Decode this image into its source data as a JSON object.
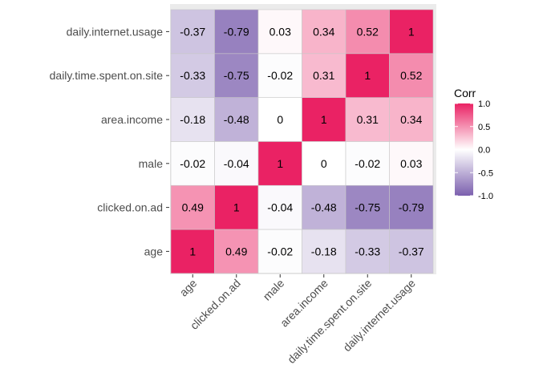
{
  "chart_data": {
    "type": "heatmap",
    "title": "",
    "xlabel": "",
    "ylabel": "",
    "variables": [
      "age",
      "clicked.on.ad",
      "male",
      "area.income",
      "daily.time.spent.on.site",
      "daily.internet.usage"
    ],
    "matrix": [
      [
        "1",
        "0.49",
        "-0.02",
        "-0.18",
        "-0.33",
        "-0.37"
      ],
      [
        "0.49",
        "1",
        "-0.04",
        "-0.48",
        "-0.75",
        "-0.79"
      ],
      [
        "-0.02",
        "-0.04",
        "1",
        "0",
        "-0.02",
        "0.03"
      ],
      [
        "-0.18",
        "-0.48",
        "0",
        "1",
        "0.31",
        "0.34"
      ],
      [
        "-0.33",
        "-0.75",
        "-0.02",
        "0.31",
        "1",
        "0.52"
      ],
      [
        "-0.37",
        "-0.79",
        "0.03",
        "0.34",
        "0.52",
        "1"
      ]
    ],
    "legend": {
      "title": "Corr",
      "ticks": [
        "1.0",
        "0.5",
        "0.0",
        "-0.5",
        "-1.0"
      ],
      "range": [
        -1,
        1
      ],
      "placement": "right"
    },
    "colors": {
      "low": "#7b5fae",
      "mid": "#ffffff",
      "high": "#ea2264",
      "panel_background": "#ebebeb",
      "cell_border": "#c8c8c8"
    }
  }
}
